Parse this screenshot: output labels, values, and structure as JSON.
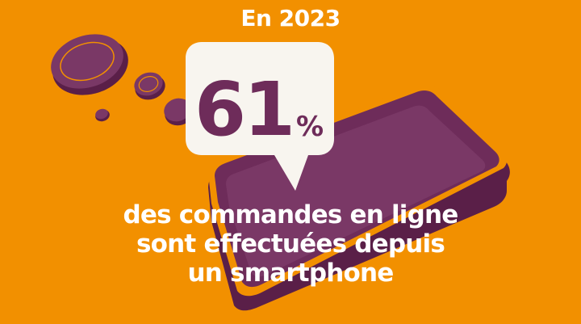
{
  "header": {
    "year_label": "En 2023"
  },
  "stat": {
    "value": "61",
    "unit": "%"
  },
  "caption": {
    "lines": [
      "des commandes en ligne",
      "sont effectuées depuis",
      "un smartphone"
    ]
  },
  "colors": {
    "background": "#f29000",
    "accent_purple": "#6e2c5a",
    "bubble": "#f8f5ef",
    "text_light": "#ffffff"
  },
  "icons": [
    "smartphone-illustration",
    "coin-icon",
    "speech-bubble-icon"
  ]
}
